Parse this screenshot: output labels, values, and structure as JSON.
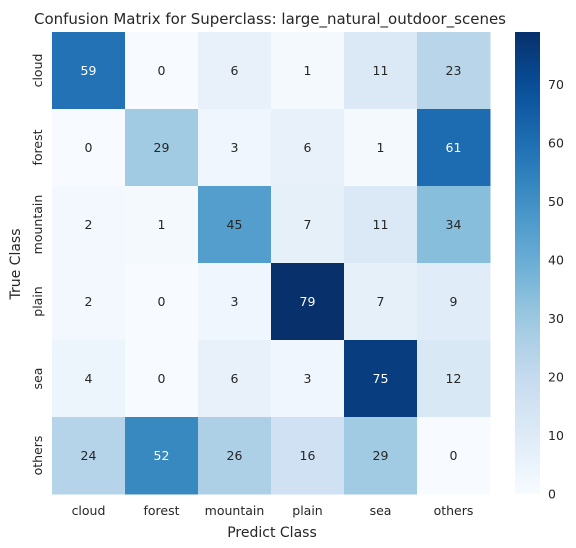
{
  "chart_data": {
    "type": "heatmap",
    "title": "Confusion Matrix for Superclass: large_natural_outdoor_scenes",
    "xlabel": "Predict Class",
    "ylabel": "True Class",
    "x_categories": [
      "cloud",
      "forest",
      "mountain",
      "plain",
      "sea",
      "others"
    ],
    "y_categories": [
      "cloud",
      "forest",
      "mountain",
      "plain",
      "sea",
      "others"
    ],
    "values": [
      [
        59,
        0,
        6,
        1,
        11,
        23
      ],
      [
        0,
        29,
        3,
        6,
        1,
        61
      ],
      [
        2,
        1,
        45,
        7,
        11,
        34
      ],
      [
        2,
        0,
        3,
        79,
        7,
        9
      ],
      [
        4,
        0,
        6,
        3,
        75,
        12
      ],
      [
        24,
        52,
        26,
        16,
        29,
        0
      ]
    ],
    "colormap": "Blues",
    "vmin": 0,
    "vmax": 79,
    "colorbar_ticks": [
      0,
      10,
      20,
      30,
      40,
      50,
      60,
      70
    ],
    "annotations": true
  }
}
